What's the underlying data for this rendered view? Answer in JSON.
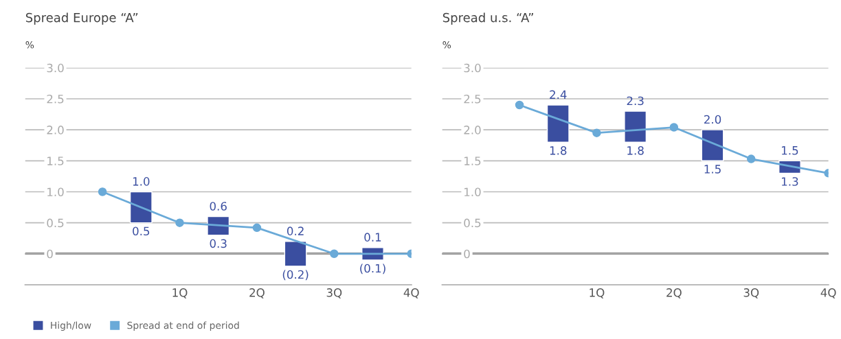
{
  "chart_data": [
    {
      "type": "bar",
      "title": "Spread Europe “A”",
      "ylabel": "%",
      "xlim": [
        -1,
        4
      ],
      "xticks": [
        {
          "value": 1,
          "label": "1Q"
        },
        {
          "value": 2,
          "label": "2Q"
        },
        {
          "value": 3,
          "label": "3Q"
        },
        {
          "value": 4,
          "label": "4Q"
        }
      ],
      "ylim": [
        -0.5,
        3.0
      ],
      "yticks": [
        0,
        0.5,
        {
          "value": 1,
          "label": "1.0"
        },
        1.5,
        {
          "value": 2,
          "label": "2.0"
        },
        2.5,
        {
          "value": 3,
          "label": "3.0"
        }
      ],
      "grid": "y",
      "legend": "bottom left",
      "ref_lines": [
        {
          "axis": "y",
          "value": 0,
          "color": "#000000"
        }
      ],
      "series": [
        {
          "name": "High/low",
          "x": [
            0.5,
            1.5,
            2.5,
            3.5
          ],
          "base": [
            0.5,
            0.3,
            -0.2,
            -0.1
          ],
          "values": [
            0.5,
            0.3,
            0.4,
            0.2
          ],
          "color": "#3a4ea0"
        },
        {
          "name": "Spread at end of period",
          "type": "line",
          "x": [
            0,
            1,
            2,
            3,
            4
          ],
          "values": [
            1.0,
            0.5,
            0.42,
            0.0,
            0.0
          ],
          "color": "#6aaad8",
          "marker": "circle"
        }
      ],
      "annotations": [
        {
          "text": "1.0",
          "x": 0.5,
          "y": 1.0
        },
        {
          "text": "0.5",
          "x": 0.5,
          "y": 0.5
        },
        {
          "text": "0.6",
          "x": 1.5,
          "y": 0.6
        },
        {
          "text": "0.3",
          "x": 1.5,
          "y": 0.3
        },
        {
          "text": "0.2",
          "x": 2.5,
          "y": 0.2
        },
        {
          "text": "(0.2)",
          "x": 2.5,
          "y": -0.2
        },
        {
          "text": "0.1",
          "x": 3.5,
          "y": 0.1
        },
        {
          "text": "(0.1)",
          "x": 3.5,
          "y": -0.1
        }
      ]
    },
    {
      "type": "bar",
      "title": "Spread u.s. “A”",
      "ylabel": "%",
      "xlim": [
        -1,
        4
      ],
      "xticks": [
        {
          "value": 1,
          "label": "1Q"
        },
        {
          "value": 2,
          "label": "2Q"
        },
        {
          "value": 3,
          "label": "3Q"
        },
        {
          "value": 4,
          "label": "4Q"
        }
      ],
      "ylim": [
        -0.5,
        3.0
      ],
      "yticks": [
        0,
        0.5,
        {
          "value": 1,
          "label": "1.0"
        },
        1.5,
        {
          "value": 2,
          "label": "2.0"
        },
        2.5,
        {
          "value": 3,
          "label": "3.0"
        }
      ],
      "grid": "y",
      "ref_lines": [
        {
          "axis": "y",
          "value": 0,
          "color": "#000000"
        }
      ],
      "series": [
        {
          "x": [
            0.5,
            1.5,
            2.5,
            3.5
          ],
          "base": [
            1.8,
            1.8,
            1.5,
            1.3
          ],
          "values": [
            0.6,
            0.5,
            0.5,
            0.2
          ],
          "color": "#3a4ea0"
        },
        {
          "type": "line",
          "x": [
            0,
            1,
            2,
            3,
            4
          ],
          "values": [
            2.4,
            1.95,
            2.04,
            1.53,
            1.3
          ],
          "color": "#6aaad8",
          "marker": "circle"
        }
      ],
      "annotations": [
        {
          "text": "2.4",
          "x": 0.5,
          "y": 2.4
        },
        {
          "text": "1.8",
          "x": 0.5,
          "y": 1.8
        },
        {
          "text": "2.3",
          "x": 1.5,
          "y": 2.3
        },
        {
          "text": "1.8",
          "x": 1.5,
          "y": 1.8
        },
        {
          "text": "2.0",
          "x": 2.5,
          "y": 2.0
        },
        {
          "text": "1.5",
          "x": 2.5,
          "y": 1.5
        },
        {
          "text": "1.5",
          "x": 3.5,
          "y": 1.5
        },
        {
          "text": "1.3",
          "x": 3.5,
          "y": 1.3
        }
      ]
    }
  ]
}
